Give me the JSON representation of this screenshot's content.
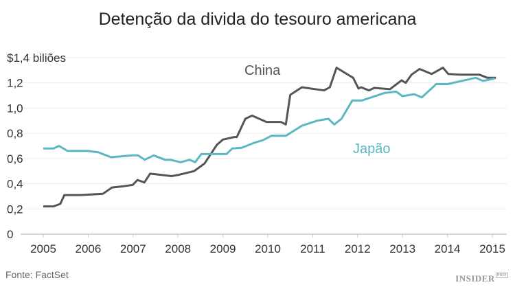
{
  "chart_data": {
    "type": "line",
    "title": "Detenção da divida do tesouro americana",
    "ylabel": "$1,4 biliões",
    "source": "Fonte: FactSet",
    "logo": "INSIDER PRO",
    "xlim": [
      2004.6,
      2015.3
    ],
    "ylim": [
      0,
      1.4
    ],
    "grid": true,
    "x_ticks": [
      "2005",
      "2006",
      "2007",
      "2008",
      "2009",
      "2010",
      "2011",
      "2012",
      "2013",
      "2014",
      "2015"
    ],
    "y_ticks": [
      "0",
      "0,2",
      "0,4",
      "0,6",
      "0,8",
      "1,0",
      "1,2"
    ],
    "series": [
      {
        "name": "China",
        "color": "#555555",
        "points": [
          [
            2005.0,
            0.22
          ],
          [
            2005.23,
            0.22
          ],
          [
            2005.38,
            0.24
          ],
          [
            2005.47,
            0.31
          ],
          [
            2005.84,
            0.31
          ],
          [
            2006.33,
            0.32
          ],
          [
            2006.53,
            0.37
          ],
          [
            2006.79,
            0.38
          ],
          [
            2006.99,
            0.39
          ],
          [
            2007.1,
            0.43
          ],
          [
            2007.25,
            0.41
          ],
          [
            2007.38,
            0.48
          ],
          [
            2007.86,
            0.46
          ],
          [
            2008.01,
            0.47
          ],
          [
            2008.36,
            0.5
          ],
          [
            2008.59,
            0.56
          ],
          [
            2008.87,
            0.71
          ],
          [
            2009.0,
            0.75
          ],
          [
            2009.25,
            0.77
          ],
          [
            2009.31,
            0.77
          ],
          [
            2009.5,
            0.915
          ],
          [
            2009.65,
            0.94
          ],
          [
            2009.97,
            0.89
          ],
          [
            2010.29,
            0.89
          ],
          [
            2010.4,
            0.87
          ],
          [
            2010.5,
            1.105
          ],
          [
            2010.76,
            1.165
          ],
          [
            2011.25,
            1.14
          ],
          [
            2011.38,
            1.165
          ],
          [
            2011.53,
            1.32
          ],
          [
            2011.9,
            1.24
          ],
          [
            2012.02,
            1.155
          ],
          [
            2012.08,
            1.165
          ],
          [
            2012.25,
            1.14
          ],
          [
            2012.37,
            1.16
          ],
          [
            2012.72,
            1.15
          ],
          [
            2012.98,
            1.22
          ],
          [
            2013.07,
            1.2
          ],
          [
            2013.2,
            1.265
          ],
          [
            2013.38,
            1.31
          ],
          [
            2013.65,
            1.27
          ],
          [
            2013.9,
            1.32
          ],
          [
            2014.02,
            1.27
          ],
          [
            2014.28,
            1.265
          ],
          [
            2014.71,
            1.265
          ],
          [
            2014.89,
            1.24
          ],
          [
            2015.08,
            1.24
          ]
        ]
      },
      {
        "name": "Japão",
        "color": "#5bb8c0",
        "points": [
          [
            2005.0,
            0.68
          ],
          [
            2005.23,
            0.68
          ],
          [
            2005.35,
            0.7
          ],
          [
            2005.54,
            0.66
          ],
          [
            2005.98,
            0.66
          ],
          [
            2006.22,
            0.65
          ],
          [
            2006.51,
            0.61
          ],
          [
            2006.99,
            0.625
          ],
          [
            2007.11,
            0.625
          ],
          [
            2007.26,
            0.59
          ],
          [
            2007.46,
            0.625
          ],
          [
            2007.71,
            0.59
          ],
          [
            2007.83,
            0.59
          ],
          [
            2008.06,
            0.57
          ],
          [
            2008.26,
            0.59
          ],
          [
            2008.38,
            0.57
          ],
          [
            2008.52,
            0.635
          ],
          [
            2009.08,
            0.635
          ],
          [
            2009.21,
            0.68
          ],
          [
            2009.42,
            0.685
          ],
          [
            2009.7,
            0.725
          ],
          [
            2009.89,
            0.745
          ],
          [
            2010.08,
            0.78
          ],
          [
            2010.4,
            0.78
          ],
          [
            2010.76,
            0.86
          ],
          [
            2011.1,
            0.9
          ],
          [
            2011.35,
            0.915
          ],
          [
            2011.48,
            0.87
          ],
          [
            2011.64,
            0.915
          ],
          [
            2011.88,
            1.06
          ],
          [
            2012.09,
            1.06
          ],
          [
            2012.6,
            1.12
          ],
          [
            2012.86,
            1.13
          ],
          [
            2013.0,
            1.095
          ],
          [
            2013.26,
            1.11
          ],
          [
            2013.43,
            1.085
          ],
          [
            2013.75,
            1.19
          ],
          [
            2014.0,
            1.19
          ],
          [
            2014.63,
            1.24
          ],
          [
            2014.79,
            1.215
          ],
          [
            2015.05,
            1.235
          ]
        ]
      }
    ]
  }
}
